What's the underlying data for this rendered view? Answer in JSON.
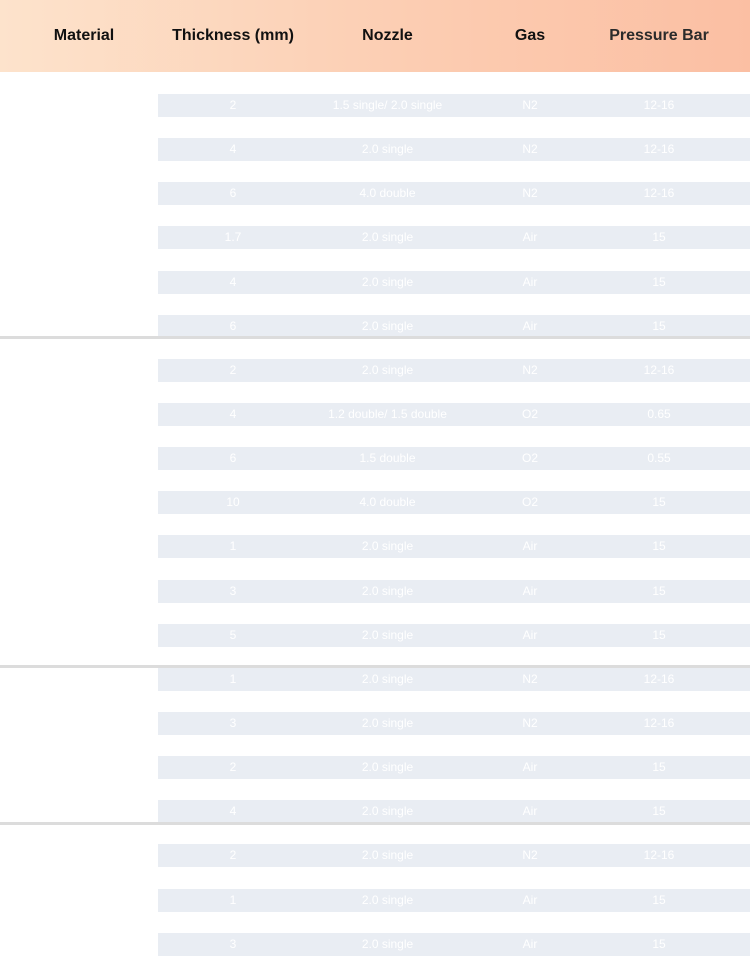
{
  "header": {
    "material": "Material",
    "thickness": "Thickness (mm)",
    "nozzle": "Nozzle",
    "gas": "Gas",
    "pressure": "Pressure Bar"
  },
  "groups": [
    {
      "rows": [
        {
          "thickness": "2",
          "nozzle": "1.5 single/ 2.0 single",
          "gas": "N2",
          "pressure": "12-16"
        },
        {
          "thickness": "4",
          "nozzle": "2.0 single",
          "gas": "N2",
          "pressure": "12-16"
        },
        {
          "thickness": "6",
          "nozzle": "4.0 double",
          "gas": "N2",
          "pressure": "12-16"
        },
        {
          "thickness": "1.7",
          "nozzle": "2.0 single",
          "gas": "Air",
          "pressure": "15"
        },
        {
          "thickness": "4",
          "nozzle": "2.0 single",
          "gas": "Air",
          "pressure": "15"
        },
        {
          "thickness": "6",
          "nozzle": "2.0 single",
          "gas": "Air",
          "pressure": "15"
        }
      ]
    },
    {
      "rows": [
        {
          "thickness": "2",
          "nozzle": "2.0 single",
          "gas": "N2",
          "pressure": "12-16"
        },
        {
          "thickness": "4",
          "nozzle": "1.2 double/ 1.5 double",
          "gas": "O2",
          "pressure": "0.65"
        },
        {
          "thickness": "6",
          "nozzle": "1.5 double",
          "gas": "O2",
          "pressure": "0.55"
        },
        {
          "thickness": "10",
          "nozzle": "4.0 double",
          "gas": "O2",
          "pressure": "15"
        },
        {
          "thickness": "1",
          "nozzle": "2.0 single",
          "gas": "Air",
          "pressure": "15"
        },
        {
          "thickness": "3",
          "nozzle": "2.0 single",
          "gas": "Air",
          "pressure": "15"
        },
        {
          "thickness": "5",
          "nozzle": "2.0 single",
          "gas": "Air",
          "pressure": "15"
        }
      ]
    },
    {
      "rows": [
        {
          "thickness": "1",
          "nozzle": "2.0 single",
          "gas": "N2",
          "pressure": "12-16"
        },
        {
          "thickness": "3",
          "nozzle": "2.0 single",
          "gas": "N2",
          "pressure": "12-16"
        },
        {
          "thickness": "2",
          "nozzle": "2.0 single",
          "gas": "Air",
          "pressure": "15"
        },
        {
          "thickness": "4",
          "nozzle": "2.0 single",
          "gas": "Air",
          "pressure": "15"
        }
      ]
    },
    {
      "rows": [
        {
          "thickness": "2",
          "nozzle": "2.0 single",
          "gas": "N2",
          "pressure": "12-16"
        },
        {
          "thickness": "1",
          "nozzle": "2.0 single",
          "gas": "Air",
          "pressure": "15"
        },
        {
          "thickness": "3",
          "nozzle": "2.0 single",
          "gas": "Air",
          "pressure": "15"
        }
      ]
    }
  ]
}
